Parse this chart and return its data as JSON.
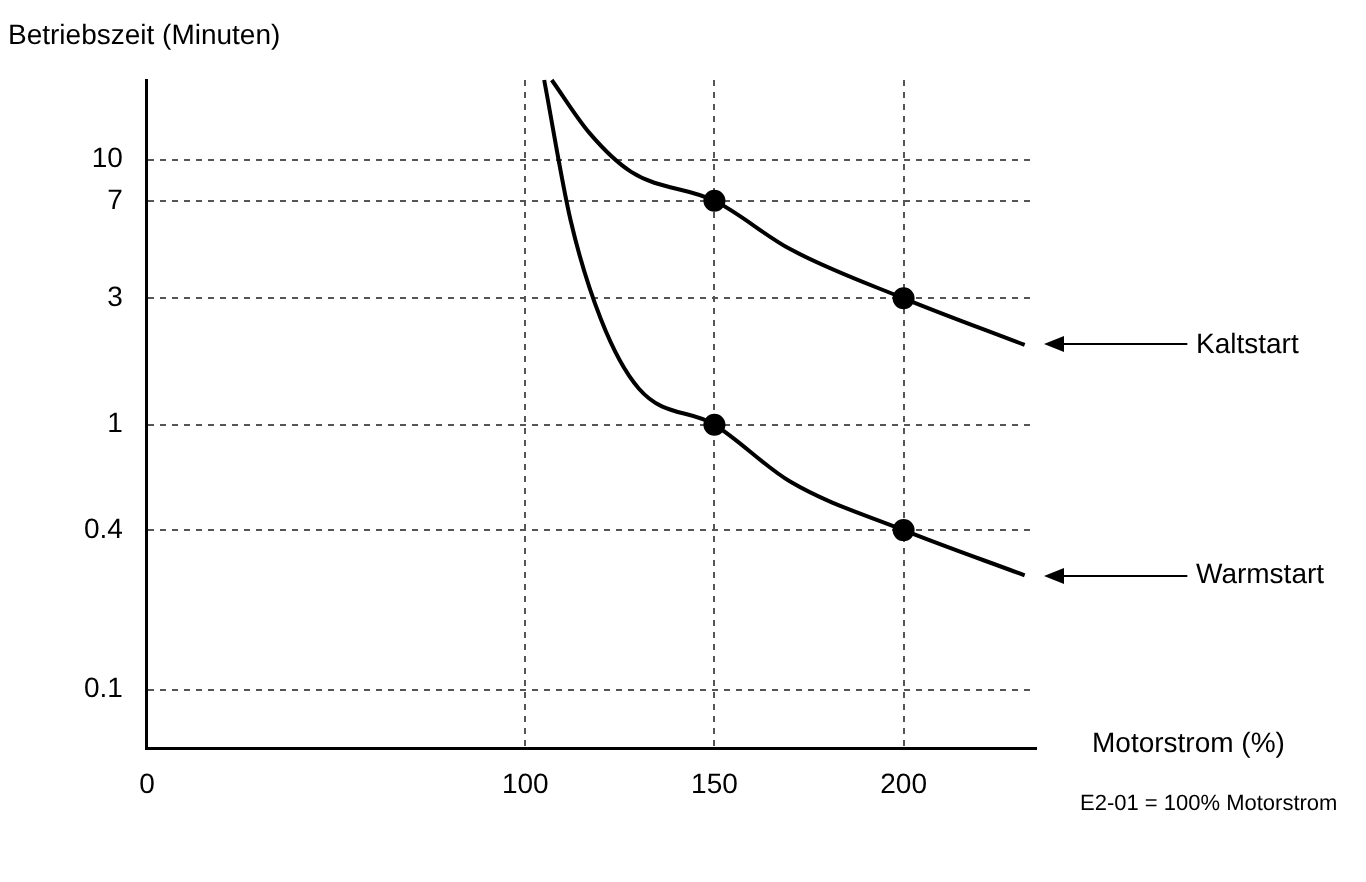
{
  "chart_data": {
    "type": "line",
    "xlabel": "Motorstrom (%)",
    "ylabel": "Betriebszeit (Minuten)",
    "xlim": [
      0,
      235
    ],
    "xticks": [
      0,
      100,
      150,
      200
    ],
    "ylim": [
      0.06,
      20
    ],
    "yticks": [
      0.1,
      0.4,
      1,
      3,
      7,
      10
    ],
    "log": "y",
    "grid": true,
    "legend": "right",
    "series": [
      {
        "name": "Kaltstart",
        "color": "#000000",
        "marker": "none",
        "x": [
          107,
          117,
          128,
          150,
          170,
          200,
          232
        ],
        "values": [
          20,
          12.6,
          9,
          7,
          4.6,
          3,
          2
        ]
      },
      {
        "name": "Warmstart",
        "color": "#000000",
        "marker": "none",
        "x": [
          105,
          112,
          120,
          130,
          150,
          170,
          200,
          232
        ],
        "values": [
          20,
          5.9,
          2.5,
          1.37,
          1,
          0.61,
          0.4,
          0.27
        ]
      },
      {
        "type": "scatter",
        "color": "#000000",
        "marker": "circle",
        "x": [
          150,
          200,
          150,
          200
        ],
        "values": [
          7,
          3,
          1,
          0.4
        ]
      }
    ],
    "annotations": [
      "E2-01 = 100% Motorstrom"
    ]
  }
}
